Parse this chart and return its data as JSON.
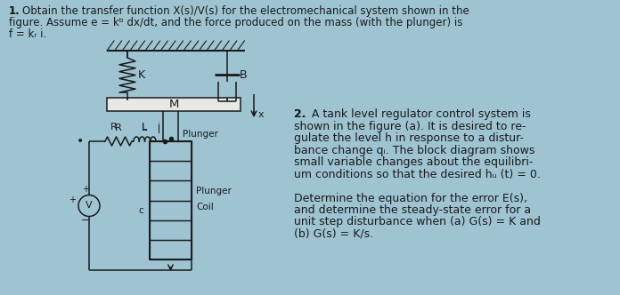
{
  "background_color": "#9ec4d2",
  "text_color": "#1a1a1a",
  "font_size_main": 8.5,
  "font_size_p2": 9.0,
  "line_color": "#1a1a1a",
  "mass_fill": "#e8e8e8",
  "coil_fill": "#1a1a1a",
  "p1_line1": "1. Obtain the transfer function X(s)/V(s) for the electromechanical system shown in the",
  "p1_line2": "figure. Assume e = kᵇ dx/dt, and the force produced on the mass (with the plunger) is",
  "p1_line3": "f = kᵣ i.",
  "p2_lines": [
    "2.  A tank level regulator control system is",
    "shown in the figure (a). It is desired to re-",
    "gulate the level h in response to a distur-",
    "bance change qᵢ. The block diagram shows",
    "small variable changes about the equilibri-",
    "um conditions so that the desired hᵤ (t) = 0.",
    "",
    "Determine the equation for the error E(s),",
    "and determine the steady-state error for a",
    "unit step disturbance when (a) G(s) = K and",
    "(b) G(s) = K/s."
  ]
}
